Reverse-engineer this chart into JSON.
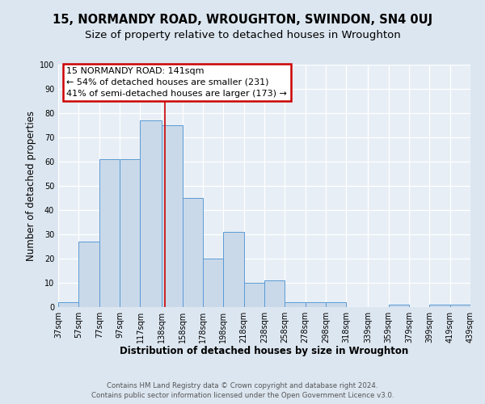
{
  "title": "15, NORMANDY ROAD, WROUGHTON, SWINDON, SN4 0UJ",
  "subtitle": "Size of property relative to detached houses in Wroughton",
  "xlabel": "Distribution of detached houses by size in Wroughton",
  "ylabel": "Number of detached properties",
  "bin_edges": [
    37,
    57,
    77,
    97,
    117,
    138,
    158,
    178,
    198,
    218,
    238,
    258,
    278,
    298,
    318,
    339,
    359,
    379,
    399,
    419,
    439
  ],
  "bar_heights": [
    2,
    27,
    61,
    61,
    77,
    75,
    45,
    20,
    31,
    10,
    11,
    2,
    2,
    2,
    0,
    0,
    1,
    0,
    1,
    1
  ],
  "bar_color": "#c9d9ea",
  "bar_edge_color": "#5b9bd5",
  "reference_line_x": 141,
  "ylim": [
    0,
    100
  ],
  "yticks": [
    0,
    10,
    20,
    30,
    40,
    50,
    60,
    70,
    80,
    90,
    100
  ],
  "annotation_title": "15 NORMANDY ROAD: 141sqm",
  "annotation_line1": "← 54% of detached houses are smaller (231)",
  "annotation_line2": "41% of semi-detached houses are larger (173) →",
  "annotation_box_color": "#ffffff",
  "annotation_box_edge_color": "#cc0000",
  "footer_line1": "Contains HM Land Registry data © Crown copyright and database right 2024.",
  "footer_line2": "Contains public sector information licensed under the Open Government Licence v3.0.",
  "background_color": "#dce6f0",
  "plot_background_color": "#e8eef5",
  "grid_color": "#ffffff",
  "title_fontsize": 10.5,
  "subtitle_fontsize": 9.5,
  "tick_label_fontsize": 7,
  "axis_label_fontsize": 8.5,
  "footer_fontsize": 6.2
}
